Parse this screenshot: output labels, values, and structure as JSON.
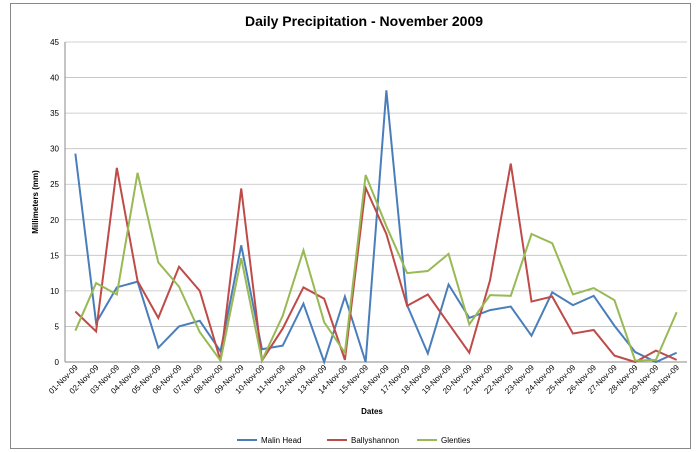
{
  "chart_data": {
    "type": "line",
    "title": "Daily Precipitation - November 2009",
    "x_label": "Dates",
    "y_label": "Millimeters (mm)",
    "categories": [
      "01-Nov-09",
      "02-Nov-09",
      "03-Nov-09",
      "04-Nov-09",
      "05-Nov-09",
      "06-Nov-09",
      "07-Nov-09",
      "08-Nov-09",
      "09-Nov-09",
      "10-Nov-09",
      "11-Nov-09",
      "12-Nov-09",
      "13-Nov-09",
      "14-Nov-09",
      "15-Nov-09",
      "16-Nov-09",
      "17-Nov-09",
      "18-Nov-09",
      "19-Nov-09",
      "20-Nov-09",
      "21-Nov-09",
      "22-Nov-09",
      "23-Nov-09",
      "24-Nov-09",
      "25-Nov-09",
      "26-Nov-09",
      "27-Nov-09",
      "28-Nov-09",
      "29-Nov-09",
      "30-Nov-09"
    ],
    "series": [
      {
        "name": "Malin Head",
        "color": "#4a7ebb",
        "values": [
          29.3,
          5.5,
          10.5,
          11.3,
          2,
          5,
          5.8,
          1.5,
          16.4,
          1.8,
          2.3,
          8.2,
          0,
          9.2,
          0,
          38.2,
          8,
          1.2,
          10.9,
          6.2,
          7.3,
          7.8,
          3.7,
          9.8,
          8,
          9.3,
          5.1,
          1.4,
          0,
          1.3
        ]
      },
      {
        "name": "Ballyshannon",
        "color": "#be4b48",
        "values": [
          7.1,
          4.3,
          27.3,
          11.4,
          6.2,
          13.4,
          10,
          0.2,
          24.4,
          0.2,
          4.7,
          10.5,
          8.9,
          0.3,
          24.5,
          18,
          7.9,
          9.5,
          5.4,
          1.3,
          11.5,
          27.9,
          8.5,
          9.2,
          4,
          4.5,
          0.9,
          0,
          1.6,
          0.3
        ]
      },
      {
        "name": "Glenties",
        "color": "#98b954",
        "values": [
          4.4,
          11.1,
          9.5,
          26.6,
          14,
          10.6,
          4.2,
          0.2,
          14.6,
          0.2,
          6.5,
          15.7,
          5.6,
          1.3,
          26.3,
          19.1,
          12.5,
          12.8,
          15.2,
          5.3,
          9.4,
          9.3,
          18,
          16.7,
          9.5,
          10.4,
          8.7,
          0.2,
          0.3,
          7
        ]
      }
    ],
    "ylim": [
      0,
      45
    ],
    "yticks": [
      0,
      5,
      10,
      15,
      20,
      25,
      30,
      35,
      40,
      45
    ],
    "grid": true,
    "legend": "bottom"
  }
}
